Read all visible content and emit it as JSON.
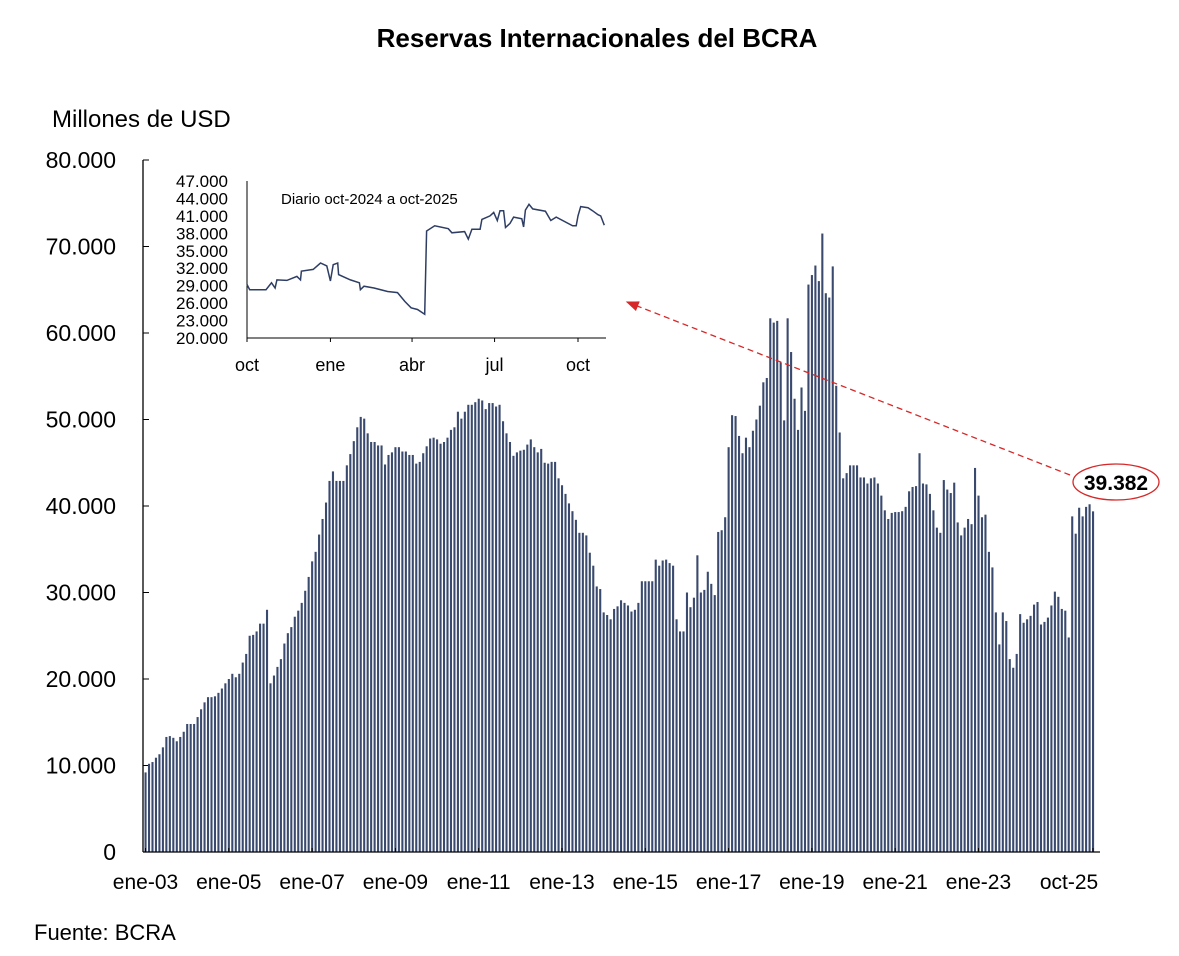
{
  "chart_data": [
    {
      "type": "bar",
      "title": "Reservas Internacionales del BCRA",
      "ylabel": "Millones de USD",
      "xlabel": "",
      "ylim": [
        0,
        80000
      ],
      "yticks": [
        "0",
        "10.000",
        "20.000",
        "30.000",
        "40.000",
        "50.000",
        "60.000",
        "70.000",
        "80.000"
      ],
      "xtick_labels": [
        "ene-03",
        "ene-05",
        "ene-07",
        "ene-09",
        "ene-11",
        "ene-13",
        "ene-15",
        "ene-17",
        "ene-19",
        "ene-21",
        "ene-23",
        "oct-25"
      ],
      "frequency": "monthly",
      "period": "ene-03 a oct-25",
      "grid": false,
      "bar_color": "#3a4a6e",
      "values_by_year": {
        "2003": [
          9200,
          10200,
          10400,
          10900,
          11300,
          12100,
          13300,
          13400,
          13200,
          12800,
          13300,
          13900
        ],
        "2004": [
          14800,
          14800,
          14800,
          15600,
          16500,
          17300,
          17900,
          17900,
          18000,
          18400,
          18900,
          19500
        ],
        "2005": [
          20000,
          20600,
          20200,
          20600,
          21900,
          22900,
          25000,
          25100,
          25500,
          26400,
          26400,
          28000
        ],
        "2006": [
          19500,
          20400,
          21400,
          22300,
          24100,
          25300,
          26000,
          27200,
          27900,
          28800,
          30200,
          31800
        ],
        "2007": [
          33600,
          34700,
          36700,
          38500,
          40400,
          42900,
          44000,
          42900,
          42900,
          42900,
          44700,
          46000
        ],
        "2008": [
          47500,
          49100,
          50300,
          50100,
          48400,
          47400,
          47400,
          47000,
          47000,
          44800,
          45900,
          46200
        ],
        "2009": [
          46800,
          46800,
          46300,
          46300,
          45900,
          45900,
          44900,
          45100,
          46100,
          46900,
          47800,
          47900
        ],
        "2010": [
          47700,
          47200,
          47400,
          47900,
          48800,
          49100,
          50900,
          50100,
          50900,
          51700,
          51700,
          52000
        ],
        "2011": [
          52400,
          52200,
          51200,
          51900,
          51900,
          51500,
          51700,
          49800,
          48400,
          47400,
          45800,
          46200
        ],
        "2012": [
          46400,
          46500,
          47100,
          47700,
          46800,
          46200,
          46600,
          45000,
          44900,
          45100,
          45100,
          43200
        ],
        "2013": [
          42400,
          41400,
          40300,
          39400,
          38400,
          36900,
          36900,
          36600,
          34600,
          33100,
          30700,
          30400
        ],
        "2014": [
          27700,
          27400,
          26900,
          28100,
          28400,
          29100,
          28800,
          28500,
          27800,
          28000,
          28800,
          31300
        ],
        "2015": [
          31300,
          31300,
          31300,
          33800,
          33100,
          33700,
          33800,
          33400,
          33100,
          26900,
          25500,
          25500
        ],
        "2016": [
          30000,
          28300,
          29400,
          34300,
          30000,
          30300,
          32400,
          31000,
          29700,
          37000,
          37200,
          38700
        ],
        "2017": [
          46800,
          50500,
          50400,
          48100,
          46100,
          47900,
          46800,
          48700,
          50000,
          51600,
          54300,
          54800
        ],
        "2018": [
          61700,
          61200,
          61400,
          56600,
          49900,
          61700,
          57800,
          52400,
          48800,
          53700,
          51000,
          65600
        ],
        "2019": [
          66700,
          67800,
          66000,
          71500,
          64600,
          64100,
          67700,
          53900,
          48500,
          43200,
          43800,
          44700
        ],
        "2020": [
          44700,
          44700,
          43300,
          43300,
          42600,
          43200,
          43300,
          42600,
          41200,
          39500,
          38500,
          39200
        ],
        "2021": [
          39300,
          39300,
          39400,
          39900,
          41700,
          42200,
          42300,
          46100,
          42600,
          42500,
          41400,
          39500
        ],
        "2022": [
          37500,
          36900,
          43000,
          41900,
          41500,
          42700,
          38100,
          36600,
          37500,
          38500,
          37900,
          44400
        ],
        "2023": [
          41200,
          38700,
          39000,
          34700,
          32900,
          27700,
          24000,
          27700,
          26700,
          22300,
          21300,
          22900
        ],
        "2024": [
          27500,
          26500,
          26900,
          27300,
          28600,
          28900,
          26300,
          26600,
          27100,
          28500,
          30100,
          29500
        ],
        "2025": [
          28100,
          27900,
          24800,
          38800,
          36800,
          39800,
          38800,
          39900,
          40200,
          39382
        ]
      },
      "annotation": {
        "label": "39.382",
        "value": 39382,
        "color": "#d62828"
      }
    },
    {
      "type": "line",
      "title": "Diario oct-2024 a oct-2025",
      "ylim": [
        20000,
        47000
      ],
      "yticks": [
        "20.000",
        "23.000",
        "26.000",
        "29.000",
        "32.000",
        "35.000",
        "38.000",
        "41.000",
        "44.000",
        "47.000"
      ],
      "xticks": [
        {
          "label": "oct",
          "date": "2024-10-01"
        },
        {
          "label": "ene",
          "date": "2025-01-01"
        },
        {
          "label": "abr",
          "date": "2025-04-01"
        },
        {
          "label": "jul",
          "date": "2025-07-01"
        },
        {
          "label": "oct",
          "date": "2025-10-01"
        }
      ],
      "line_color": "#2e3d64",
      "points": [
        [
          "2024-10-01",
          29200
        ],
        [
          "2024-10-04",
          28300
        ],
        [
          "2024-10-22",
          28300
        ],
        [
          "2024-10-28",
          29500
        ],
        [
          "2024-11-01",
          28600
        ],
        [
          "2024-11-03",
          30000
        ],
        [
          "2024-11-14",
          29900
        ],
        [
          "2024-11-25",
          30600
        ],
        [
          "2024-11-29",
          30000
        ],
        [
          "2024-11-30",
          31500
        ],
        [
          "2024-12-13",
          31800
        ],
        [
          "2024-12-21",
          32900
        ],
        [
          "2024-12-28",
          32400
        ],
        [
          "2025-01-01",
          29800
        ],
        [
          "2025-01-04",
          32600
        ],
        [
          "2025-01-09",
          32900
        ],
        [
          "2025-01-10",
          30900
        ],
        [
          "2025-01-23",
          30000
        ],
        [
          "2025-02-02",
          29500
        ],
        [
          "2025-02-03",
          28300
        ],
        [
          "2025-02-07",
          28900
        ],
        [
          "2025-02-18",
          28600
        ],
        [
          "2025-03-05",
          28000
        ],
        [
          "2025-03-16",
          27800
        ],
        [
          "2025-03-24",
          26300
        ],
        [
          "2025-03-31",
          25200
        ],
        [
          "2025-04-07",
          24900
        ],
        [
          "2025-04-15",
          24100
        ],
        [
          "2025-04-17",
          38400
        ],
        [
          "2025-04-26",
          39300
        ],
        [
          "2025-05-11",
          38800
        ],
        [
          "2025-05-15",
          38100
        ],
        [
          "2025-05-29",
          38300
        ],
        [
          "2025-06-02",
          37000
        ],
        [
          "2025-06-06",
          38700
        ],
        [
          "2025-06-15",
          38700
        ],
        [
          "2025-06-17",
          40400
        ],
        [
          "2025-06-26",
          41000
        ],
        [
          "2025-06-30",
          41600
        ],
        [
          "2025-07-04",
          40200
        ],
        [
          "2025-07-07",
          41900
        ],
        [
          "2025-07-11",
          41900
        ],
        [
          "2025-07-13",
          39000
        ],
        [
          "2025-07-18",
          39700
        ],
        [
          "2025-07-22",
          40800
        ],
        [
          "2025-07-31",
          40500
        ],
        [
          "2025-08-02",
          39100
        ],
        [
          "2025-08-04",
          42000
        ],
        [
          "2025-08-08",
          43000
        ],
        [
          "2025-08-12",
          42200
        ],
        [
          "2025-08-26",
          41800
        ],
        [
          "2025-09-01",
          40200
        ],
        [
          "2025-09-07",
          40800
        ],
        [
          "2025-09-25",
          39300
        ],
        [
          "2025-09-29",
          39300
        ],
        [
          "2025-10-01",
          41000
        ],
        [
          "2025-10-04",
          42600
        ],
        [
          "2025-10-12",
          42400
        ],
        [
          "2025-10-17",
          41900
        ],
        [
          "2025-10-23",
          41200
        ],
        [
          "2025-10-26",
          41000
        ],
        [
          "2025-10-30",
          39400
        ]
      ]
    }
  ],
  "source": "Fuente: BCRA"
}
